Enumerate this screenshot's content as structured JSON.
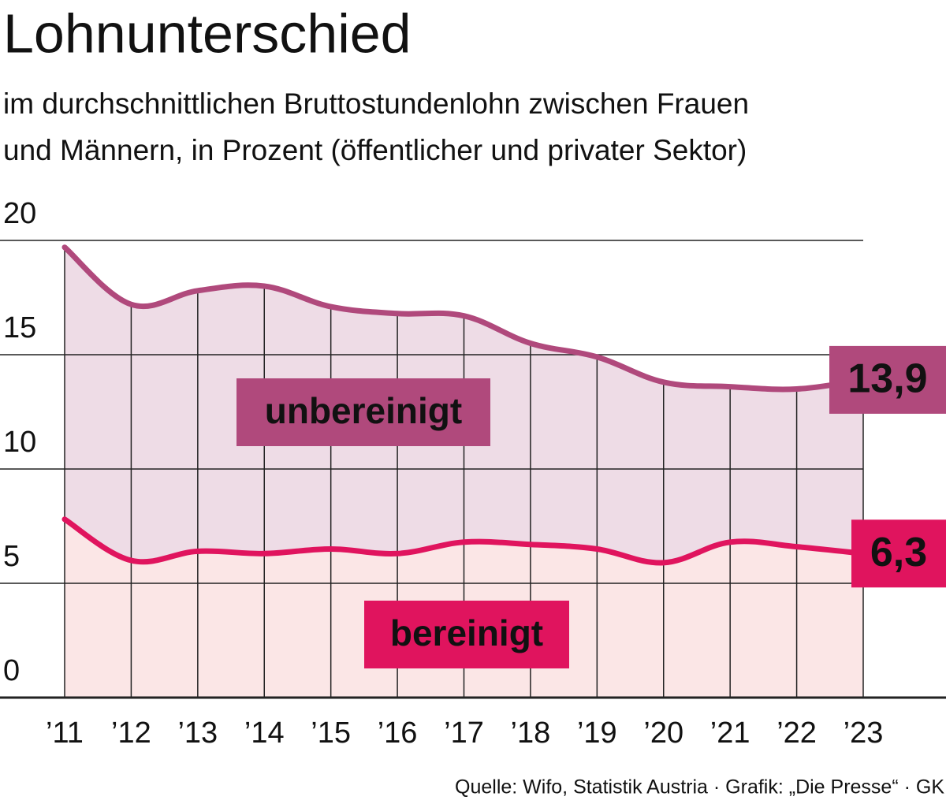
{
  "chart_data": {
    "type": "line",
    "title": "Lohnunterschied",
    "subtitle": [
      "im durchschnittlichen Bruttostundenlohn zwischen Frauen",
      "und Männern, in Prozent (öffentlicher und privater Sektor)"
    ],
    "categories": [
      "’11",
      "’12",
      "’13",
      "’14",
      "’15",
      "’16",
      "’17",
      "’18",
      "’19",
      "’20",
      "’21",
      "’22",
      "’23"
    ],
    "series": [
      {
        "name": "unbereinigt",
        "color": "#b0497c",
        "fill": "#eedce6",
        "values": [
          19.7,
          17.2,
          17.8,
          18.0,
          17.1,
          16.8,
          16.7,
          15.5,
          14.9,
          13.8,
          13.6,
          13.5,
          13.9
        ],
        "value_labels": [
          null,
          null,
          null,
          null,
          null,
          null,
          null,
          null,
          null,
          null,
          null,
          null,
          "13,9"
        ]
      },
      {
        "name": "bereinigt",
        "color": "#e0145e",
        "fill": "#fbe6e6",
        "values": [
          7.8,
          6.0,
          6.4,
          6.3,
          6.5,
          6.3,
          6.8,
          6.7,
          6.5,
          5.9,
          6.8,
          6.6,
          6.3
        ],
        "value_labels": [
          null,
          null,
          null,
          null,
          null,
          null,
          null,
          null,
          null,
          null,
          null,
          null,
          "6,3"
        ]
      }
    ],
    "ylim": [
      0,
      20
    ],
    "yticks": [
      0,
      5,
      10,
      15,
      20
    ],
    "grid": true,
    "source": "Quelle: Wifo, Statistik Austria · Grafik: „Die Presse“ · GK"
  }
}
